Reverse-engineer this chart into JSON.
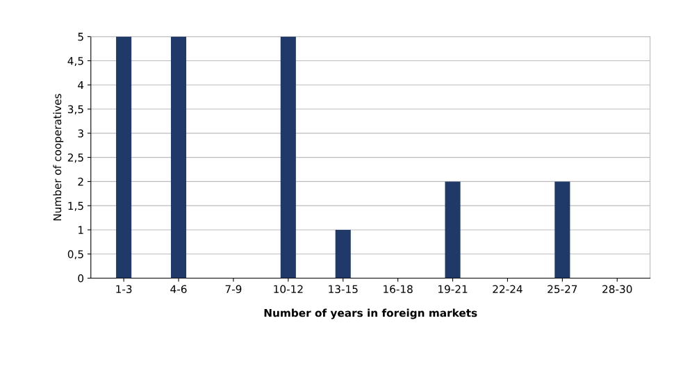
{
  "chart_data": {
    "type": "bar",
    "xlabel": "Number of years in foreign markets",
    "ylabel": "Number of cooperatives",
    "categories": [
      "1-3",
      "4-6",
      "7-9",
      "10-12",
      "13-15",
      "16-18",
      "19-21",
      "22-24",
      "25-27",
      "28-30"
    ],
    "values": [
      5,
      5,
      0,
      5,
      1,
      0,
      2,
      0,
      2,
      0
    ],
    "color": "#1f3a68",
    "ylim": [
      0,
      5
    ],
    "yticks": [
      0,
      {
        "value": 0.5,
        "label": "0,5"
      },
      1,
      {
        "value": 1.5,
        "label": "1,5"
      },
      2,
      {
        "value": 2.5,
        "label": "2,5"
      },
      3,
      {
        "value": 3.5,
        "label": "3,5"
      },
      4,
      {
        "value": 4.5,
        "label": "4,5"
      },
      5
    ],
    "grid": "y"
  }
}
